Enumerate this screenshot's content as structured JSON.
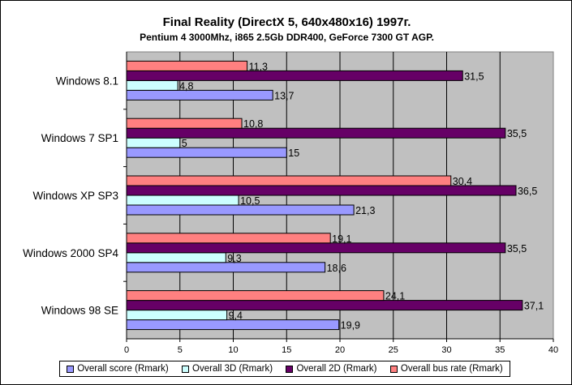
{
  "chart_data": {
    "type": "bar",
    "orientation": "horizontal",
    "title": "Final Reality (DirectX 5, 640x480x16) 1997г.",
    "subtitle": "Pentium 4 3000Mhz, i865 2.5Gb DDR400, GeForce 7300 GT AGP.",
    "categories": [
      "Windows 8.1",
      "Windows 7 SP1",
      "Windows XP SP3",
      "Windows 2000 SP4",
      "Windows 98 SE"
    ],
    "series": [
      {
        "name": "Overall score (Rmark)",
        "color": "#9999ff",
        "values": [
          13.7,
          15,
          21.3,
          18.6,
          19.9
        ],
        "labels": [
          "13,7",
          "15",
          "21,3",
          "18,6",
          "19,9"
        ]
      },
      {
        "name": "Overall 3D (Rmark)",
        "color": "#ccffff",
        "values": [
          4.8,
          5,
          10.5,
          9.3,
          9.4
        ],
        "labels": [
          "4,8",
          "5",
          "10,5",
          "9,3",
          "9,4"
        ]
      },
      {
        "name": "Overall 2D (Rmark)",
        "color": "#660066",
        "values": [
          31.5,
          35.5,
          36.5,
          35.5,
          37.1
        ],
        "labels": [
          "31,5",
          "35,5",
          "36,5",
          "35,5",
          "37,1"
        ]
      },
      {
        "name": "Overall bus rate (Rmark)",
        "color": "#ff8080",
        "values": [
          11.3,
          10.8,
          30.4,
          19.1,
          24.1
        ],
        "labels": [
          "11,3",
          "10,8",
          "30,4",
          "19,1",
          "24,1"
        ]
      }
    ],
    "xlim": [
      0,
      40
    ],
    "xticks": [
      "0",
      "5",
      "10",
      "15",
      "20",
      "25",
      "30",
      "35",
      "40"
    ],
    "xlabel": "",
    "ylabel": "",
    "grid": "vertical",
    "plot_background": "#c0c0c0",
    "legend_position": "bottom"
  }
}
